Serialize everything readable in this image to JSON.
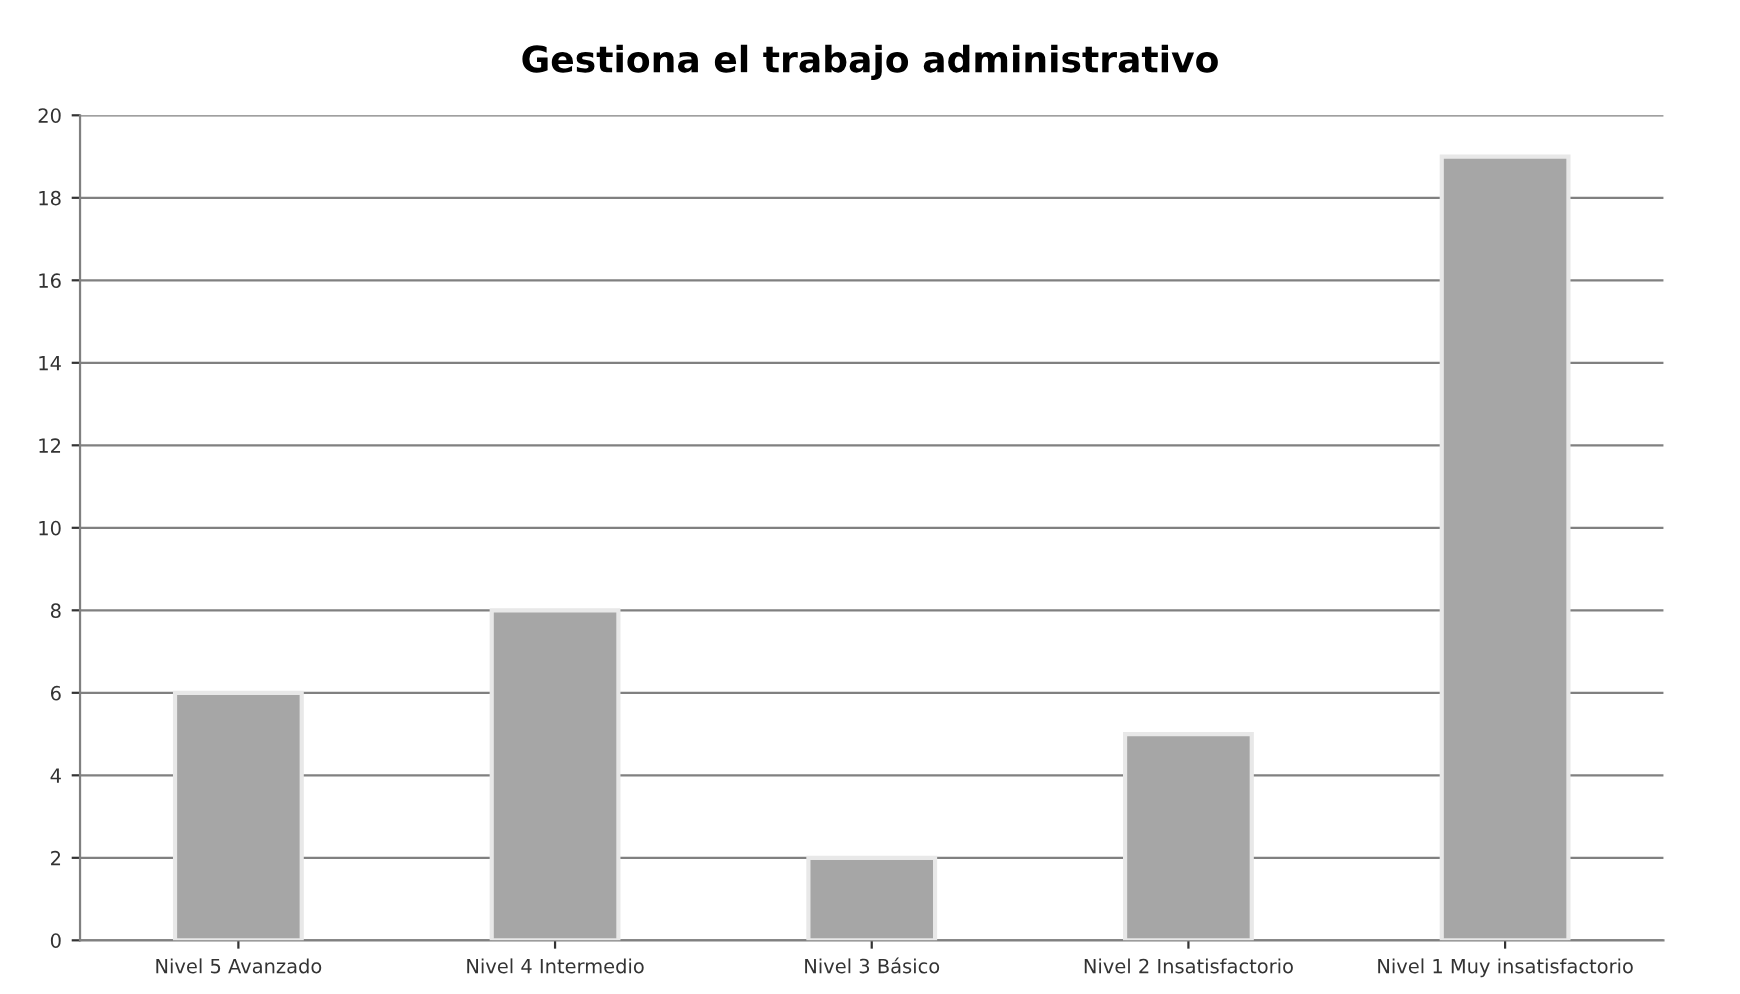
{
  "chart_data": {
    "type": "bar",
    "title": "Gestiona el trabajo administrativo",
    "categories": [
      "Nivel 5 Avanzado",
      "Nivel 4 Intermedio",
      "Nivel 3 Básico",
      "Nivel 2 Insatisfactorio",
      "Nivel 1 Muy insatisfactorio"
    ],
    "values": [
      6,
      8,
      2,
      5,
      19
    ],
    "color": "#a6a6a6",
    "ylim": [
      0,
      20
    ],
    "yticks": [
      0,
      2,
      4,
      6,
      8,
      10,
      12,
      14,
      16,
      18,
      20
    ],
    "grid": "y"
  }
}
